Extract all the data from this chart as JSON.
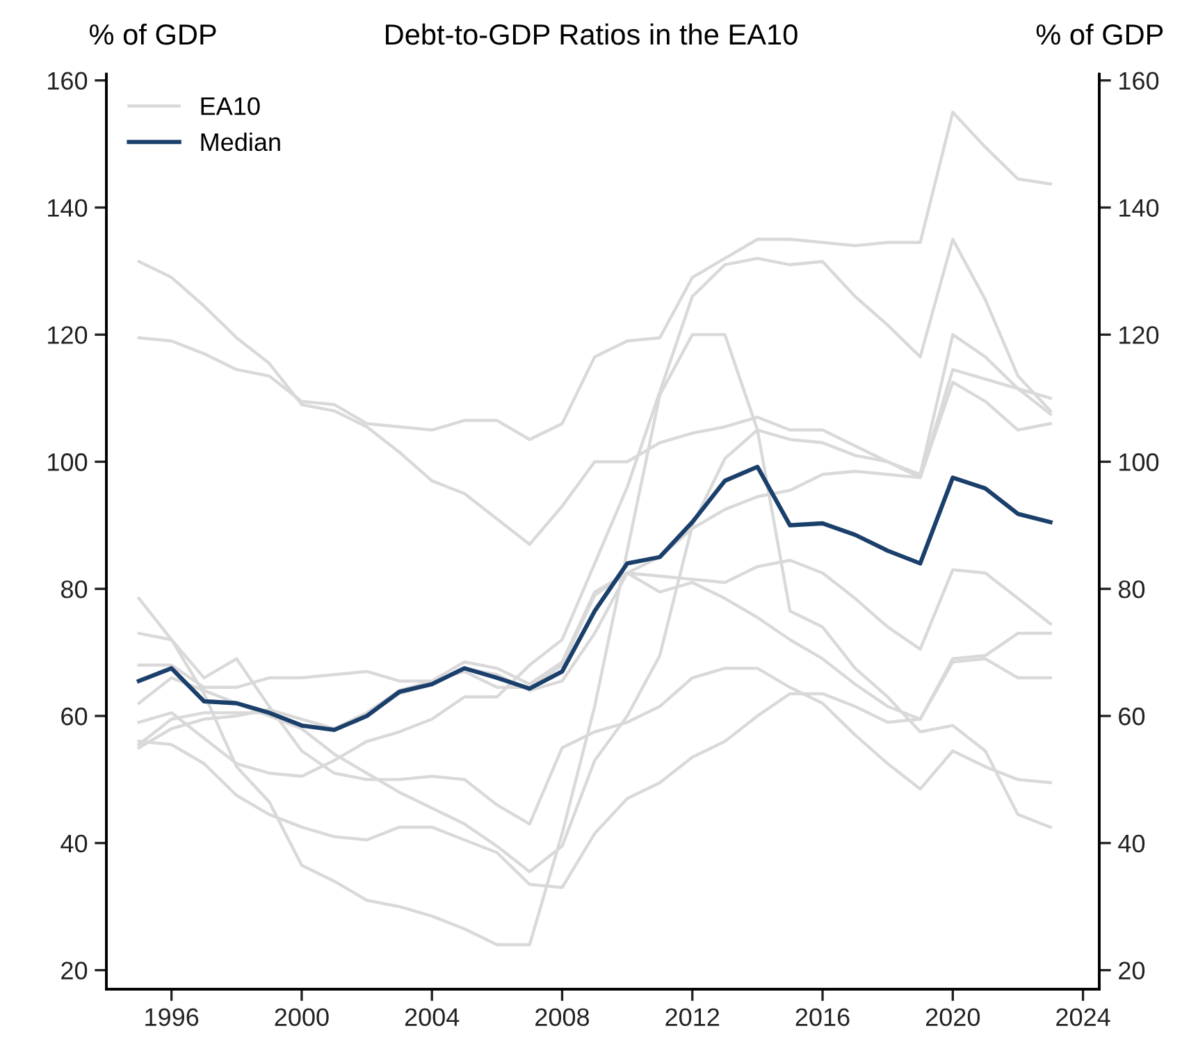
{
  "chart_data": {
    "type": "line",
    "title": "Debt-to-GDP Ratios in the EA10",
    "ylabel": "% of GDP",
    "y2label": "% of GDP",
    "x": [
      1995,
      1996,
      1997,
      1998,
      1999,
      2000,
      2001,
      2002,
      2003,
      2004,
      2005,
      2006,
      2007,
      2008,
      2009,
      2010,
      2011,
      2012,
      2013,
      2014,
      2015,
      2016,
      2017,
      2018,
      2019,
      2020,
      2021,
      2022,
      2023
    ],
    "xlim": [
      1994,
      2024.5
    ],
    "xticks": [
      1996,
      2000,
      2004,
      2008,
      2012,
      2016,
      2020,
      2024
    ],
    "ylim": [
      17,
      161
    ],
    "yticks": [
      20,
      40,
      60,
      80,
      100,
      120,
      140,
      160
    ],
    "y2lim": [
      17,
      161
    ],
    "y2ticks": [
      20,
      40,
      60,
      80,
      100,
      120,
      140,
      160
    ],
    "legend": "top left",
    "grid": false,
    "marker": "none",
    "line_style": "solid",
    "series": [
      {
        "name": "EA10",
        "color": "#d9d9d9",
        "values": [
          119.5,
          119,
          117,
          114.5,
          113.5,
          109.5,
          109,
          106,
          105.5,
          105,
          106.5,
          106.5,
          103.5,
          106,
          116.5,
          119,
          119.5,
          129,
          132,
          135,
          135,
          134.5,
          134,
          134.5,
          134.5,
          155,
          149.5,
          144.5,
          143.7
        ]
      },
      {
        "color": "#d9d9d9",
        "values": [
          131.5,
          129,
          124.5,
          119.5,
          115.5,
          109,
          108,
          105.5,
          101.5,
          97,
          95,
          91,
          87,
          93,
          100,
          100,
          103,
          104.5,
          105.5,
          107,
          105,
          105,
          102.5,
          100,
          97.5,
          112.5,
          109.5,
          105,
          106
        ]
      },
      {
        "color": "#d9d9d9",
        "values": [
          78.5,
          72,
          63.5,
          52,
          46.5,
          36.5,
          34,
          31,
          30,
          28.5,
          26.5,
          24,
          24,
          41.5,
          61.5,
          86,
          110.5,
          120,
          120,
          105,
          76.5,
          74,
          67.5,
          63,
          57.5,
          58.5,
          54.5,
          44.5,
          42.5
        ]
      },
      {
        "color": "#d9d9d9",
        "values": [
          59,
          60.5,
          56.5,
          52.5,
          51,
          50.5,
          53,
          56,
          57.5,
          59.5,
          63,
          63,
          68,
          72,
          84,
          96,
          111,
          126,
          131,
          132,
          131,
          131.5,
          126,
          121.5,
          116.5,
          135,
          125.5,
          113.5,
          108
        ]
      },
      {
        "color": "#d9d9d9",
        "values": [
          62,
          66,
          64,
          62,
          60,
          58,
          54,
          51,
          48,
          45.5,
          43,
          39.5,
          35.5,
          39.5,
          53,
          60,
          69.5,
          90,
          100.5,
          105,
          103.5,
          103,
          101,
          100,
          98,
          120,
          116.5,
          111.5,
          107.5
        ]
      },
      {
        "color": "#d9d9d9",
        "values": [
          55.5,
          59.5,
          60.5,
          60.5,
          60.5,
          58.5,
          58,
          60.5,
          64,
          65.5,
          67,
          64.5,
          64.5,
          68,
          79,
          82.5,
          85,
          89.5,
          92.5,
          94.5,
          95.5,
          98,
          98.5,
          98,
          97.5,
          114.5,
          113,
          111.5,
          110
        ]
      },
      {
        "color": "#d9d9d9",
        "values": [
          55,
          58,
          59.5,
          60,
          61,
          59.5,
          58,
          60,
          63.5,
          65,
          67.5,
          66.5,
          64,
          65.5,
          73,
          82.5,
          79.5,
          81,
          78.5,
          75.5,
          72,
          69,
          65,
          61.5,
          59.5,
          68.5,
          69,
          66,
          66
        ]
      },
      {
        "color": "#d9d9d9",
        "values": [
          68,
          68,
          64.5,
          64.5,
          66,
          66,
          66.5,
          67,
          65.5,
          65.5,
          68.5,
          67.5,
          65,
          68.5,
          79.5,
          82.5,
          82,
          81.5,
          81,
          83.5,
          84.5,
          82.5,
          78.5,
          74,
          70.5,
          83,
          82.5,
          78.5,
          74.5
        ]
      },
      {
        "color": "#d9d9d9",
        "values": [
          73,
          72,
          66,
          69,
          61.5,
          54.5,
          51,
          50,
          50,
          50.5,
          50,
          46,
          43,
          55,
          57.5,
          59,
          61.5,
          66,
          67.5,
          67.5,
          64.5,
          62,
          57,
          52.5,
          48.5,
          54.5,
          52,
          50,
          49.5
        ]
      },
      {
        "color": "#d9d9d9",
        "values": [
          56,
          55.5,
          52.5,
          47.5,
          44.5,
          42.5,
          41,
          40.5,
          42.5,
          42.5,
          40.5,
          38.5,
          33.5,
          33,
          41.5,
          47,
          49.5,
          53.5,
          56,
          60,
          63.5,
          63.5,
          61.5,
          59,
          59.5,
          69,
          69.5,
          73,
          73
        ]
      },
      {
        "name": "Median",
        "color": "#1b3f6b",
        "values": [
          65.5,
          67.5,
          62.3,
          62,
          60.5,
          58.5,
          57.8,
          60,
          63.8,
          65,
          67.5,
          66,
          64.3,
          67,
          76.5,
          84,
          85,
          90.5,
          97,
          99.2,
          90,
          90.3,
          88.5,
          86,
          84,
          97.5,
          95.8,
          91.8,
          90.5
        ]
      }
    ]
  }
}
